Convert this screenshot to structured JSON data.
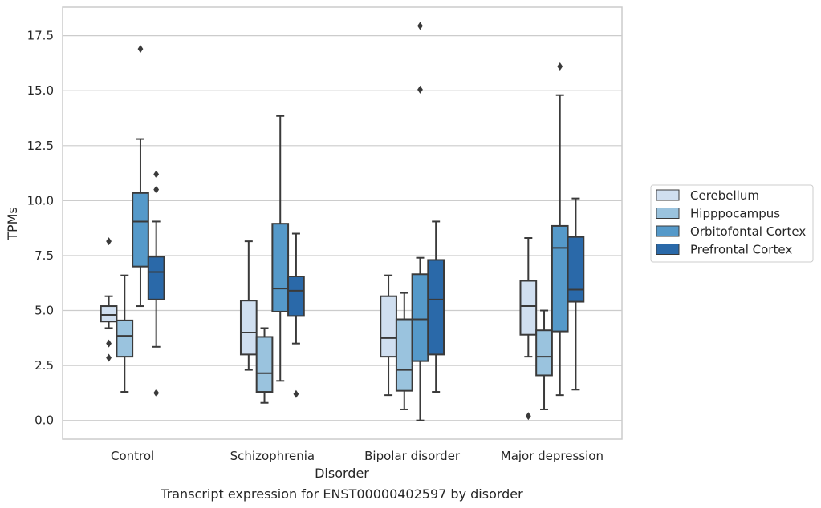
{
  "caption": "Transcript expression for ENST00000402597 by disorder",
  "chart_data": {
    "type": "box",
    "title": "",
    "xlabel": "Disorder",
    "ylabel": "TPMs",
    "ylim": [
      -0.85,
      18.8
    ],
    "yticks": [
      "0.0",
      "2.5",
      "5.0",
      "7.5",
      "10.0",
      "12.5",
      "15.0",
      "17.5"
    ],
    "ytick_values": [
      0,
      2.5,
      5,
      7.5,
      10,
      12.5,
      15,
      17.5
    ],
    "grid": "horizontal",
    "legend_position": "right",
    "categories": [
      "Control",
      "Schizophrenia",
      "Bipolar disorder",
      "Major depression"
    ],
    "series": [
      {
        "name": "Cerebellum",
        "color": "#d0dff0",
        "boxes": [
          {
            "whisker_low": 4.2,
            "q1": 4.5,
            "median": 4.8,
            "q3": 5.2,
            "whisker_high": 5.65,
            "outliers": [
              8.15,
              3.5,
              2.85
            ]
          },
          {
            "whisker_low": 2.3,
            "q1": 3.0,
            "median": 4.0,
            "q3": 5.45,
            "whisker_high": 8.15,
            "outliers": []
          },
          {
            "whisker_low": 1.15,
            "q1": 2.9,
            "median": 3.75,
            "q3": 5.65,
            "whisker_high": 6.6,
            "outliers": []
          },
          {
            "whisker_low": 2.9,
            "q1": 3.9,
            "median": 5.2,
            "q3": 6.35,
            "whisker_high": 8.3,
            "outliers": [
              0.2
            ]
          }
        ]
      },
      {
        "name": "Hipppocampus",
        "color": "#9ac3de",
        "boxes": [
          {
            "whisker_low": 1.3,
            "q1": 2.9,
            "median": 3.85,
            "q3": 4.55,
            "whisker_high": 6.6,
            "outliers": []
          },
          {
            "whisker_low": 0.8,
            "q1": 1.3,
            "median": 2.15,
            "q3": 3.8,
            "whisker_high": 4.2,
            "outliers": []
          },
          {
            "whisker_low": 0.5,
            "q1": 1.35,
            "median": 2.3,
            "q3": 4.6,
            "whisker_high": 5.8,
            "outliers": []
          },
          {
            "whisker_low": 0.5,
            "q1": 2.05,
            "median": 2.9,
            "q3": 4.1,
            "whisker_high": 5.0,
            "outliers": []
          }
        ]
      },
      {
        "name": "Orbitofontal Cortex",
        "color": "#5599c9",
        "boxes": [
          {
            "whisker_low": 5.2,
            "q1": 7.0,
            "median": 9.05,
            "q3": 10.35,
            "whisker_high": 12.8,
            "outliers": [
              16.9
            ]
          },
          {
            "whisker_low": 1.8,
            "q1": 4.95,
            "median": 6.0,
            "q3": 8.95,
            "whisker_high": 13.85,
            "outliers": []
          },
          {
            "whisker_low": 0.0,
            "q1": 2.7,
            "median": 4.6,
            "q3": 6.65,
            "whisker_high": 7.4,
            "outliers": [
              17.95,
              15.05
            ]
          },
          {
            "whisker_low": 1.15,
            "q1": 4.05,
            "median": 7.85,
            "q3": 8.85,
            "whisker_high": 14.8,
            "outliers": [
              16.1
            ]
          }
        ]
      },
      {
        "name": "Prefrontal Cortex",
        "color": "#2a69a9",
        "boxes": [
          {
            "whisker_low": 3.35,
            "q1": 5.5,
            "median": 6.75,
            "q3": 7.45,
            "whisker_high": 9.05,
            "outliers": [
              11.2,
              10.5,
              1.25
            ]
          },
          {
            "whisker_low": 3.5,
            "q1": 4.75,
            "median": 5.9,
            "q3": 6.55,
            "whisker_high": 8.5,
            "outliers": [
              1.2
            ]
          },
          {
            "whisker_low": 1.3,
            "q1": 3.0,
            "median": 5.5,
            "q3": 7.3,
            "whisker_high": 9.05,
            "outliers": []
          },
          {
            "whisker_low": 1.4,
            "q1": 5.4,
            "median": 5.95,
            "q3": 8.35,
            "whisker_high": 10.1,
            "outliers": []
          }
        ]
      }
    ]
  }
}
